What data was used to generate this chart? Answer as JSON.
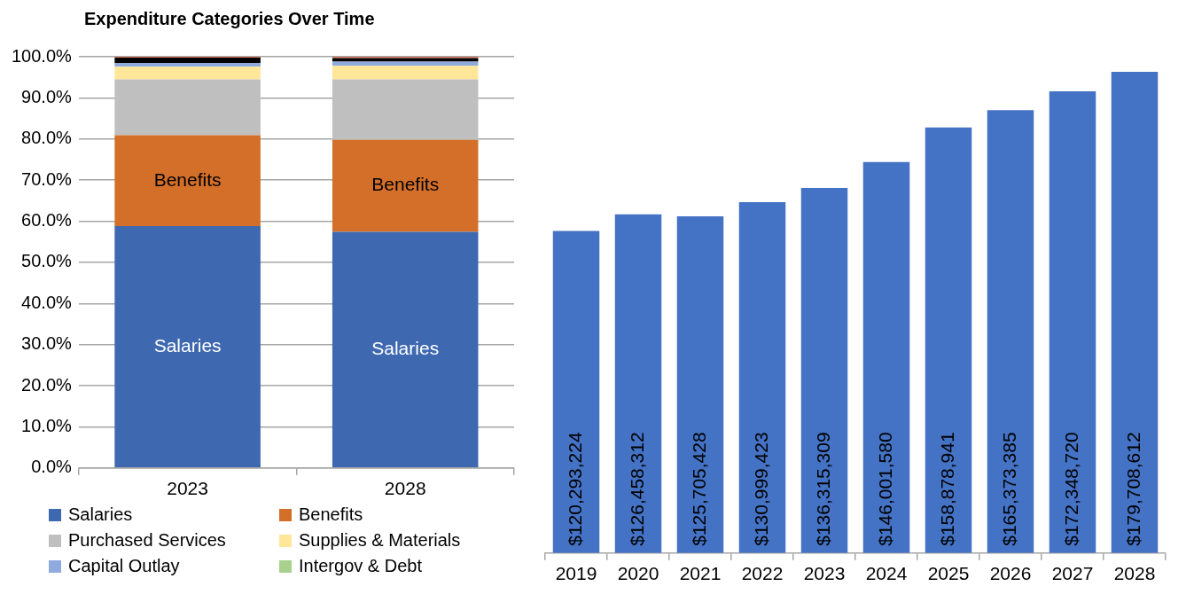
{
  "chart_data": [
    {
      "type": "bar",
      "title": "Expenditure Categories Over Time",
      "categories": [
        "2023",
        "2028"
      ],
      "stacked": true,
      "series": [
        {
          "name": "Salaries",
          "color": "#3e68b0",
          "values": [
            58.8,
            57.4
          ],
          "value_labels": [
            "Salaries",
            "Salaries"
          ]
        },
        {
          "name": "Benefits",
          "color": "#d46f2a",
          "values": [
            22.1,
            22.4
          ],
          "value_labels": [
            "Benefits",
            "Benefits"
          ]
        },
        {
          "name": "Purchased Services",
          "color": "#bfbfbf",
          "values": [
            13.6,
            14.7
          ]
        },
        {
          "name": "Supplies & Materials",
          "color": "#ffe699",
          "values": [
            3.1,
            3.3
          ]
        },
        {
          "name": "Capital Outlay",
          "color": "#8faadc",
          "values": [
            0.9,
            1.0
          ]
        },
        {
          "name": "Intergov & Debt",
          "color": "#a9d18e",
          "values": [
            0,
            0
          ]
        },
        {
          "color": "#000000",
          "values": [
            1.3,
            0.9
          ]
        },
        {
          "color": "#e07a5f",
          "values": [
            0.2,
            0.3
          ]
        }
      ],
      "ylim": [
        0,
        100
      ],
      "yticks": [
        {
          "value": 0,
          "label": "0.0%"
        },
        {
          "value": 10,
          "label": "10.0%"
        },
        {
          "value": 20,
          "label": "20.0%"
        },
        {
          "value": 30,
          "label": "30.0%"
        },
        {
          "value": 40,
          "label": "40.0%"
        },
        {
          "value": 50,
          "label": "50.0%"
        },
        {
          "value": 60,
          "label": "60.0%"
        },
        {
          "value": 70,
          "label": "70.0%"
        },
        {
          "value": 80,
          "label": "80.0%"
        },
        {
          "value": 90,
          "label": "90.0%"
        },
        {
          "value": 100,
          "label": "100.0%"
        }
      ],
      "grid": "y",
      "legend": "bottom"
    },
    {
      "type": "bar",
      "categories": [
        "2019",
        "2020",
        "2021",
        "2022",
        "2023",
        "2024",
        "2025",
        "2026",
        "2027",
        "2028"
      ],
      "values": [
        120293224,
        126458312,
        125705428,
        130999423,
        136315309,
        146001580,
        158878941,
        165373385,
        172348720,
        179708612
      ],
      "value_labels": [
        "$120,293,224",
        "$126,458,312",
        "$125,705,428",
        "$130,999,423",
        "$136,315,309",
        "$146,001,580",
        "$158,878,941",
        "$165,373,385",
        "$172,348,720",
        "$179,708,612"
      ],
      "color": "#4472c4",
      "tick_labels": "x",
      "grid": false,
      "legend": false
    }
  ]
}
